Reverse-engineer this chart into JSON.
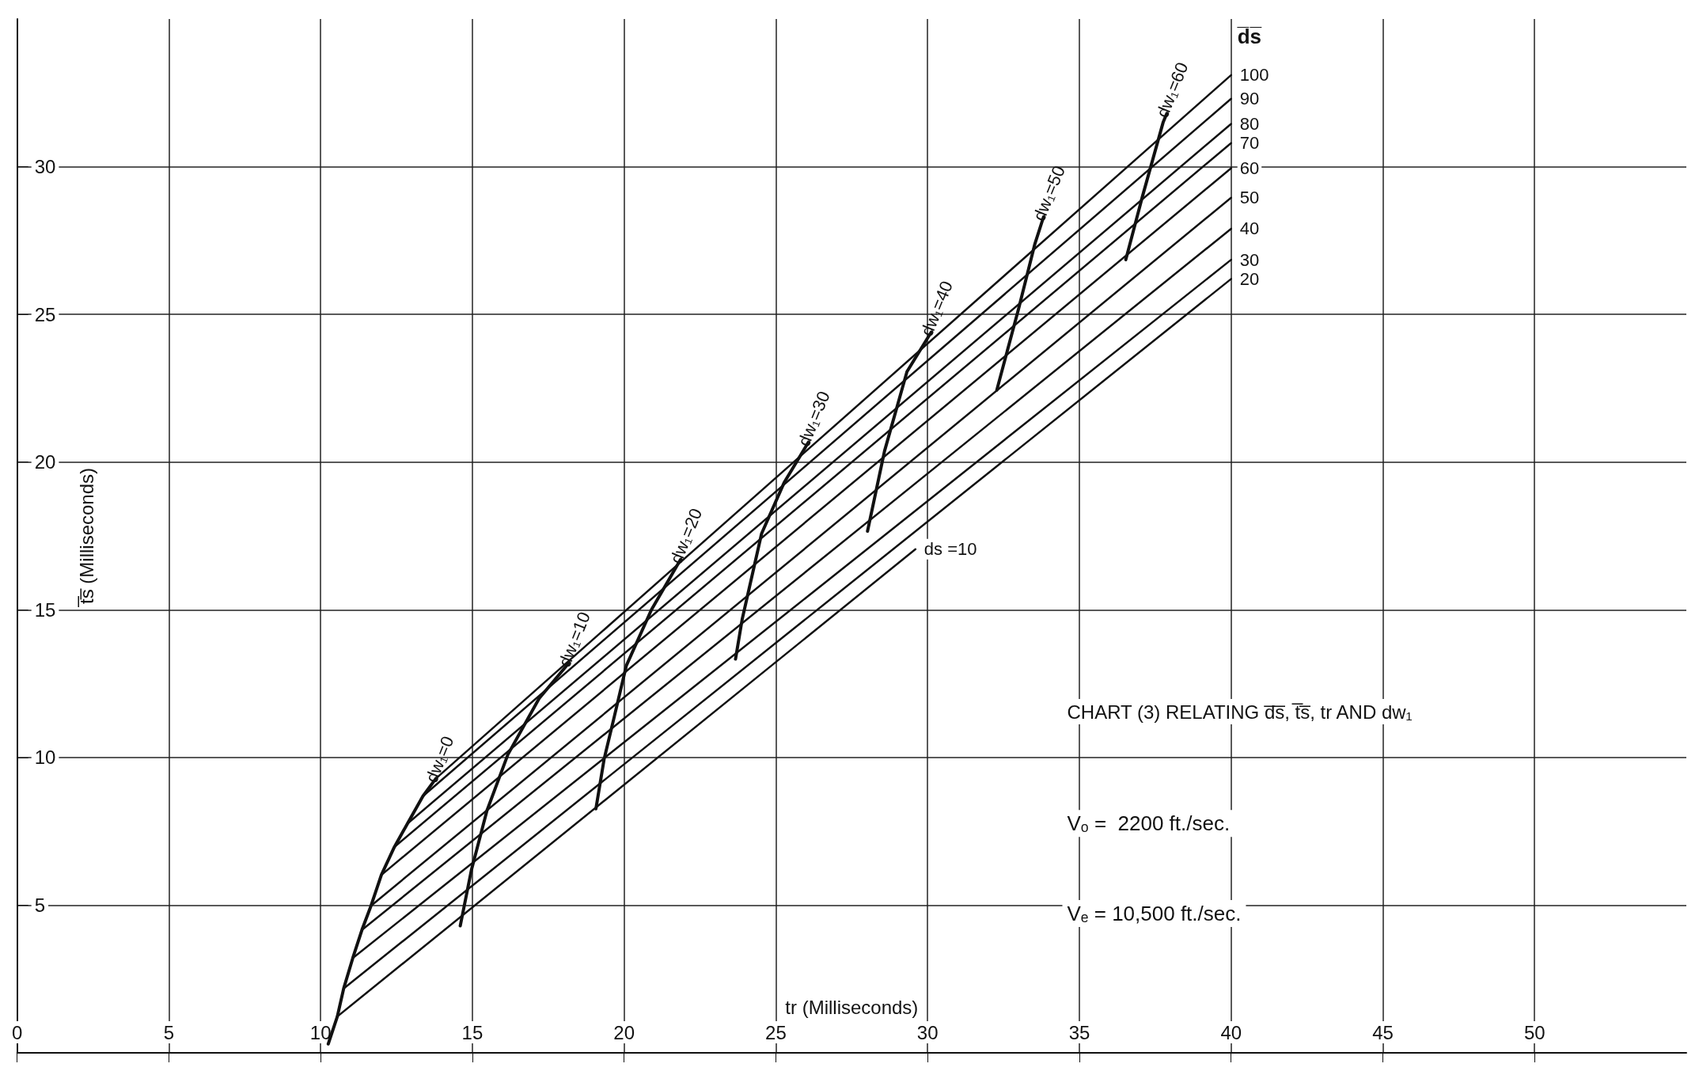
{
  "chart_data": {
    "type": "line",
    "xlabel": "tr (Milliseconds)",
    "ylabel": "t̅s̅ (Milliseconds)",
    "legend_title": "d̅s̅",
    "xlim": [
      0,
      55
    ],
    "ylim": [
      0,
      35
    ],
    "xticks": [
      0,
      5,
      10,
      15,
      20,
      25,
      30,
      35,
      40,
      45,
      50
    ],
    "yticks": [
      {
        "value": 0,
        "label": null
      },
      5,
      10,
      15,
      20,
      25,
      30
    ],
    "grid": true,
    "marker": "none",
    "line_style": "solid",
    "annotations": [
      "CHART (3) RELATING d̅s̅, t̅s̅, tr AND dw₁",
      "Vₒ =  2200 ft./sec.",
      "Vₑ = 10,500 ft./sec."
    ],
    "series": [
      {
        "name": "100",
        "color": "#111111",
        "x": [
          13.8,
          40
        ],
        "values": [
          9.29,
          33.1
        ]
      },
      {
        "name": "90",
        "color": "#111111",
        "x": [
          13.37,
          40
        ],
        "values": [
          8.69,
          32.3
        ]
      },
      {
        "name": "80",
        "color": "#111111",
        "x": [
          12.86,
          40
        ],
        "values": [
          7.76,
          31.45
        ]
      },
      {
        "name": "70",
        "color": "#111111",
        "x": [
          12.43,
          40
        ],
        "values": [
          6.97,
          30.8
        ]
      },
      {
        "name": "60",
        "color": "#111111",
        "x": [
          12.0,
          40
        ],
        "values": [
          6.02,
          29.95
        ]
      },
      {
        "name": "50",
        "color": "#111111",
        "x": [
          11.66,
          40
        ],
        "values": [
          4.98,
          28.95
        ]
      },
      {
        "name": "40",
        "color": "#111111",
        "x": [
          11.36,
          40
        ],
        "values": [
          4.16,
          27.9
        ]
      },
      {
        "name": "30",
        "color": "#111111",
        "x": [
          11.06,
          40
        ],
        "values": [
          3.21,
          26.85
        ]
      },
      {
        "name": "20",
        "color": "#111111",
        "x": [
          10.76,
          40
        ],
        "values": [
          2.18,
          26.2
        ]
      },
      {
        "name": "ds =10",
        "color": "#111111",
        "x": [
          10.55,
          29.6
        ],
        "values": [
          1.23,
          17.05
        ]
      },
      {
        "name": "dw₁=0",
        "color": "#111111",
        "x": [
          10.25,
          10.55,
          10.76,
          11.06,
          11.36,
          11.66,
          12.0,
          12.43,
          12.86,
          13.37,
          13.8
        ],
        "values": [
          0.3,
          1.23,
          2.18,
          3.21,
          4.16,
          4.98,
          6.02,
          6.97,
          7.76,
          8.69,
          9.29
        ]
      },
      {
        "name": "dw₁=10",
        "color": "#111111",
        "x": [
          14.6,
          14.97,
          15.48,
          16.17,
          17.2,
          18.18
        ],
        "values": [
          4.3,
          6.2,
          8.2,
          10.1,
          12.0,
          13.2
        ]
      },
      {
        "name": "dw₁=20",
        "color": "#111111",
        "x": [
          19.07,
          19.34,
          19.68,
          20.07,
          20.9,
          21.86
        ],
        "values": [
          8.26,
          9.94,
          11.4,
          13.1,
          15.0,
          16.7
        ]
      },
      {
        "name": "dw₁=30",
        "color": "#111111",
        "x": [
          23.67,
          23.89,
          24.53,
          25.27,
          26.07
        ],
        "values": [
          13.33,
          14.68,
          17.58,
          19.3,
          20.67
        ]
      },
      {
        "name": "dw₁=40",
        "color": "#111111",
        "x": [
          28.02,
          28.58,
          29.32,
          30.12
        ],
        "values": [
          17.66,
          20.37,
          23.06,
          24.4
        ]
      },
      {
        "name": "dw₁=50",
        "color": "#111111",
        "x": [
          32.28,
          33.0,
          33.53,
          33.82
        ],
        "values": [
          22.44,
          25.2,
          27.37,
          28.3
        ]
      },
      {
        "name": "dw₁=60",
        "color": "#111111",
        "x": [
          36.53,
          37.07,
          37.76,
          37.88
        ],
        "values": [
          26.85,
          28.96,
          31.5,
          31.8
        ]
      }
    ]
  }
}
